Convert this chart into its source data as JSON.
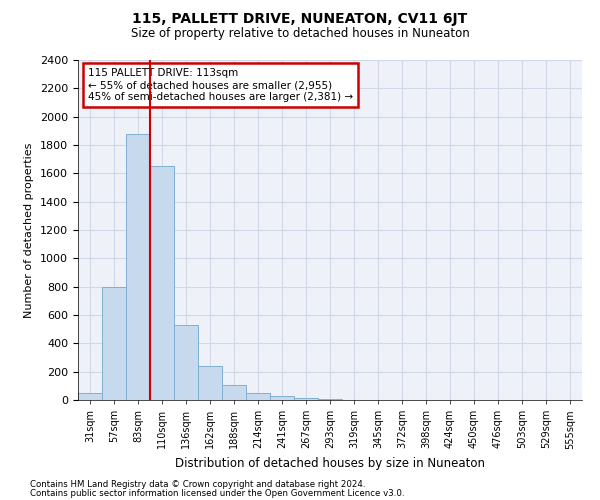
{
  "title": "115, PALLETT DRIVE, NUNEATON, CV11 6JT",
  "subtitle": "Size of property relative to detached houses in Nuneaton",
  "xlabel": "Distribution of detached houses by size in Nuneaton",
  "ylabel": "Number of detached properties",
  "bins": [
    "31sqm",
    "57sqm",
    "83sqm",
    "110sqm",
    "136sqm",
    "162sqm",
    "188sqm",
    "214sqm",
    "241sqm",
    "267sqm",
    "293sqm",
    "319sqm",
    "345sqm",
    "372sqm",
    "398sqm",
    "424sqm",
    "450sqm",
    "476sqm",
    "503sqm",
    "529sqm",
    "555sqm"
  ],
  "values": [
    50,
    800,
    1880,
    1650,
    530,
    240,
    105,
    50,
    30,
    15,
    5,
    2,
    1,
    0,
    0,
    0,
    0,
    0,
    0,
    0,
    0
  ],
  "bar_color": "#c7d9ed",
  "bar_edge_color": "#7fafd4",
  "red_line_x": 2.5,
  "annotation_line1": "115 PALLETT DRIVE: 113sqm",
  "annotation_line2": "← 55% of detached houses are smaller (2,955)",
  "annotation_line3": "45% of semi-detached houses are larger (2,381) →",
  "annotation_box_color": "#ffffff",
  "annotation_box_edge": "#cc0000",
  "grid_color": "#d0d8e8",
  "background_color": "#eef2f8",
  "ylim": [
    0,
    2400
  ],
  "yticks": [
    0,
    200,
    400,
    600,
    800,
    1000,
    1200,
    1400,
    1600,
    1800,
    2000,
    2200,
    2400
  ],
  "footer1": "Contains HM Land Registry data © Crown copyright and database right 2024.",
  "footer2": "Contains public sector information licensed under the Open Government Licence v3.0."
}
